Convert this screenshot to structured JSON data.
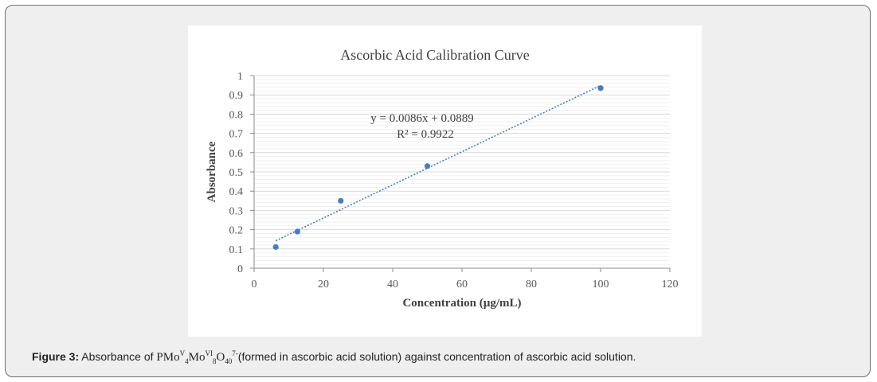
{
  "chart_data": {
    "type": "scatter",
    "title": "Ascorbic Acid Calibration Curve",
    "xlabel": "Concentration (µg/mL)",
    "ylabel": "Absorbance",
    "xlim": [
      0,
      120
    ],
    "ylim": [
      0,
      1
    ],
    "xticks": [
      "0",
      "20",
      "40",
      "60",
      "80",
      "100",
      "120"
    ],
    "yticks": [
      "0",
      "0.1",
      "0.2",
      "0.3",
      "0.4",
      "0.5",
      "0.6",
      "0.7",
      "0.8",
      "0.9",
      "1"
    ],
    "grid": true,
    "points": [
      {
        "x": 6.25,
        "y": 0.11
      },
      {
        "x": 12.5,
        "y": 0.19
      },
      {
        "x": 25,
        "y": 0.35
      },
      {
        "x": 50,
        "y": 0.53
      },
      {
        "x": 100,
        "y": 0.935
      }
    ],
    "trendline": {
      "type": "linear",
      "slope": 0.0086,
      "intercept": 0.0889,
      "x_range": [
        6.25,
        100
      ]
    },
    "equation_text": "y = 0.0086x + 0.0889",
    "r2_text": "R² = 0.9922",
    "colors": {
      "marker": "#4a7ebb",
      "trendline": "#4a7ebb",
      "gridline": "#d9d9d9",
      "axis": "#8c8c8c"
    }
  },
  "caption": {
    "label": "Figure 3:",
    "text_before": " Absorbance of ",
    "formula": {
      "p1": "PMo",
      "sup1": "V",
      "sub1": "4",
      "p2": "Mo",
      "sup2": "VI",
      "sub2": "8",
      "p3": "O",
      "sub3": "40",
      "sup3": "7-"
    },
    "text_after": "(formed in ascorbic acid solution) against concentration of ascorbic acid solution."
  }
}
